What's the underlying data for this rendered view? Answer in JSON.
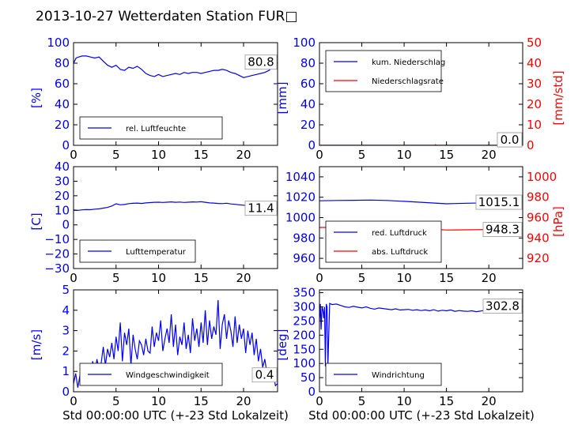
{
  "title": "2013-10-27 Wetterdaten Station FUR□",
  "xlabel": "Std 00:00:00 UTC (+-23 Std Lokalzeit)",
  "colors": {
    "left_axis": "#0000ff",
    "right_axis": "#ff0000",
    "series_blue": "#0000ff",
    "series_red": "#ff0000"
  },
  "chart_data": [
    {
      "id": "humidity",
      "type": "line",
      "ylabel": "[%]",
      "ylim": [
        0,
        100
      ],
      "yticks": [
        0,
        20,
        40,
        60,
        80,
        100
      ],
      "xlim": [
        0,
        24
      ],
      "xticks": [
        0,
        5,
        10,
        15,
        20
      ],
      "legend": {
        "position": "lower-left",
        "entries": [
          "rel. Luftfeuchte"
        ]
      },
      "last_value": "80.8",
      "series": [
        {
          "name": "rel. Luftfeuchte",
          "color": "#0000ff",
          "x": [
            0,
            0.3,
            0.6,
            1,
            1.5,
            2,
            2.5,
            3,
            3.5,
            4,
            4.5,
            5,
            5.5,
            6,
            6.5,
            7,
            7.5,
            8,
            8.5,
            9,
            9.5,
            10,
            10.5,
            11,
            11.5,
            12,
            12.5,
            13,
            13.5,
            14,
            14.5,
            15,
            15.5,
            16,
            16.5,
            17,
            17.5,
            18,
            18.5,
            19,
            19.5,
            20,
            20.5,
            21,
            21.5,
            22,
            22.5,
            23,
            23.5,
            24
          ],
          "y": [
            80,
            85,
            86,
            87,
            87,
            86,
            85,
            86,
            82,
            78,
            76,
            78,
            74,
            73,
            76,
            75,
            77,
            74,
            70,
            68,
            67,
            69,
            67,
            68,
            69,
            70,
            69,
            71,
            70,
            71,
            71,
            70,
            71,
            72,
            73,
            73,
            74,
            73,
            71,
            70,
            68,
            66,
            67,
            68,
            69,
            70,
            71,
            73,
            77,
            81
          ]
        }
      ]
    },
    {
      "id": "precip",
      "type": "line",
      "ylabel": "[mm]",
      "ylabel_right": "[mm/std]",
      "ylim": [
        0,
        100
      ],
      "yticks": [
        0,
        20,
        40,
        60,
        80,
        100
      ],
      "ylim_right": [
        0,
        50
      ],
      "yticks_right": [
        0,
        10,
        20,
        30,
        40,
        50
      ],
      "xlim": [
        0,
        24
      ],
      "xticks": [
        0,
        5,
        10,
        15,
        20
      ],
      "legend": {
        "position": "upper-left",
        "entries": [
          "kum. Niederschlag",
          "Niederschlagsrate"
        ]
      },
      "last_value": "0.0",
      "last_value_right": "0.0",
      "series": [
        {
          "name": "kum. Niederschlag",
          "color": "#0000ff",
          "axis": "left",
          "x": [
            0,
            24
          ],
          "y": [
            0,
            0
          ]
        },
        {
          "name": "Niederschlagsrate",
          "color": "#ff0000",
          "axis": "right",
          "x": [
            0,
            13.6,
            13.7,
            13.8,
            24
          ],
          "y": [
            0,
            0,
            0.3,
            0,
            0
          ]
        }
      ]
    },
    {
      "id": "temperature",
      "type": "line",
      "ylabel": "[C]",
      "ylim": [
        -30,
        40
      ],
      "yticks": [
        -30,
        -20,
        -10,
        0,
        10,
        20,
        30,
        40
      ],
      "xlim": [
        0,
        24
      ],
      "xticks": [
        0,
        5,
        10,
        15,
        20
      ],
      "legend": {
        "position": "lower-left",
        "entries": [
          "Lufttemperatur"
        ]
      },
      "last_value": "11.4",
      "series": [
        {
          "name": "Lufttemperatur",
          "color": "#0000ff",
          "x": [
            0,
            0.5,
            1,
            1.5,
            2,
            2.5,
            3,
            3.5,
            4,
            4.5,
            5,
            5.5,
            6,
            6.5,
            7,
            7.5,
            8,
            8.5,
            9,
            9.5,
            10,
            10.5,
            11,
            11.5,
            12,
            12.5,
            13,
            13.5,
            14,
            14.5,
            15,
            15.5,
            16,
            16.5,
            17,
            17.5,
            18,
            18.5,
            19,
            19.5,
            20,
            20.5,
            21,
            21.5,
            22,
            22.5,
            23,
            23.5,
            24
          ],
          "y": [
            10.2,
            10,
            10.3,
            10.5,
            10.4,
            10.8,
            11,
            11.5,
            12,
            13,
            14.5,
            13.8,
            14,
            14.6,
            14.8,
            15,
            14.7,
            15.1,
            15.3,
            15.5,
            15.6,
            15.4,
            15.6,
            15.8,
            15.5,
            15.7,
            15.4,
            15.6,
            15.8,
            15.7,
            15.9,
            15.5,
            15.1,
            15,
            14.7,
            14.6,
            14.9,
            14.4,
            14.1,
            13.8,
            13.5,
            13.2,
            13,
            12.8,
            12.5,
            12.3,
            12.2,
            12,
            11.4
          ]
        }
      ]
    },
    {
      "id": "pressure",
      "type": "line",
      "ylabel_right": "[hPa]",
      "ylim": [
        950,
        1050
      ],
      "yticks": [
        960,
        980,
        1000,
        1020,
        1040
      ],
      "ylim_right": [
        910,
        1010
      ],
      "yticks_right": [
        920,
        940,
        960,
        980,
        1000
      ],
      "xlim": [
        0,
        24
      ],
      "xticks": [
        0,
        5,
        10,
        15,
        20
      ],
      "legend": {
        "position": "lower-left",
        "entries": [
          "red. Luftdruck",
          "abs. Luftdruck"
        ]
      },
      "last_value": "1015.1",
      "last_value_right": "948.3",
      "series": [
        {
          "name": "red. Luftdruck",
          "color": "#0000ff",
          "axis": "left",
          "x": [
            0,
            2,
            4,
            6,
            8,
            10,
            12,
            14,
            15,
            16,
            18,
            20,
            22,
            24
          ],
          "y": [
            1016.5,
            1016.8,
            1017,
            1017.2,
            1016.8,
            1016,
            1015,
            1014,
            1013.6,
            1013.8,
            1014.2,
            1014.6,
            1015,
            1015.1
          ]
        },
        {
          "name": "abs. Luftdruck",
          "color": "#ff0000",
          "axis": "right",
          "x": [
            0,
            2,
            4,
            6,
            8,
            10,
            12,
            14,
            15,
            16,
            18,
            20,
            22,
            24
          ],
          "y": [
            950.3,
            950.5,
            950.8,
            951.3,
            950.8,
            950.2,
            949.2,
            948.2,
            947.8,
            947.9,
            948.1,
            948.3,
            948.5,
            948.3
          ]
        }
      ]
    },
    {
      "id": "windspeed",
      "type": "line",
      "ylabel": "[m/s]",
      "ylim": [
        0,
        5
      ],
      "yticks": [
        0,
        1,
        2,
        3,
        4,
        5
      ],
      "xlim": [
        0,
        24
      ],
      "xticks": [
        0,
        5,
        10,
        15,
        20
      ],
      "legend": {
        "position": "lower-left",
        "entries": [
          "Windgeschwindigkeit"
        ]
      },
      "last_value": "0.4",
      "series": [
        {
          "name": "Windgeschwindigkeit",
          "color": "#0000ff",
          "x": [
            0,
            0.25,
            0.5,
            0.75,
            1,
            1.25,
            1.5,
            1.75,
            2,
            2.25,
            2.5,
            2.75,
            3,
            3.25,
            3.5,
            3.75,
            4,
            4.25,
            4.5,
            4.75,
            5,
            5.25,
            5.5,
            5.75,
            6,
            6.25,
            6.5,
            6.75,
            7,
            7.25,
            7.5,
            7.75,
            8,
            8.25,
            8.5,
            8.75,
            9,
            9.25,
            9.5,
            9.75,
            10,
            10.25,
            10.5,
            10.75,
            11,
            11.25,
            11.5,
            11.75,
            12,
            12.25,
            12.5,
            12.75,
            13,
            13.25,
            13.5,
            13.75,
            14,
            14.25,
            14.5,
            14.75,
            15,
            15.25,
            15.5,
            15.75,
            16,
            16.25,
            16.5,
            16.75,
            17,
            17.25,
            17.5,
            17.75,
            18,
            18.25,
            18.5,
            18.75,
            19,
            19.25,
            19.5,
            19.75,
            20,
            20.25,
            20.5,
            20.75,
            21,
            21.25,
            21.5,
            21.75,
            22,
            22.25,
            22.5,
            22.75,
            23,
            23.25,
            23.5,
            23.75,
            24
          ],
          "y": [
            0.4,
            0.9,
            0.2,
            0.8,
            0.6,
            1.4,
            0.5,
            1.2,
            0.7,
            1.5,
            0.9,
            1.6,
            1.1,
            1.4,
            2.2,
            1.3,
            2.1,
            1.7,
            2.4,
            1.6,
            2.7,
            2,
            3.4,
            1.5,
            2.9,
            2.3,
            3.1,
            1.3,
            2.8,
            2.1,
            1.6,
            2.5,
            2.3,
            1.8,
            2.6,
            2,
            1.9,
            3.2,
            2.2,
            2.9,
            2.5,
            3.5,
            2,
            2.6,
            3.1,
            2.4,
            3.8,
            2.2,
            3.3,
            1.8,
            2.7,
            2.3,
            3.4,
            2.1,
            2.8,
            1.9,
            3.6,
            2.5,
            3.1,
            2.2,
            3.4,
            2.4,
            4,
            2.3,
            3.5,
            2.6,
            3.2,
            2.8,
            4.5,
            2.1,
            3.3,
            3.8,
            2.6,
            3.5,
            3,
            2.2,
            3.7,
            2.4,
            3.3,
            2.6,
            3.1,
            1.9,
            3,
            2.3,
            2.9,
            1.8,
            2.6,
            1.5,
            2.1,
            1.2,
            1.6,
            0.9,
            1.1,
            0.6,
            0.9,
            0.3,
            0.4
          ]
        }
      ]
    },
    {
      "id": "winddir",
      "type": "line",
      "ylabel": "[deg]",
      "ylim": [
        0,
        360
      ],
      "yticks": [
        0,
        50,
        100,
        150,
        200,
        250,
        300,
        350
      ],
      "xlim": [
        0,
        24
      ],
      "xticks": [
        0,
        5,
        10,
        15,
        20
      ],
      "legend": {
        "position": "lower-left",
        "entries": [
          "Windrichtung"
        ]
      },
      "last_value": "302.8",
      "series": [
        {
          "name": "Windrichtung",
          "color": "#0000ff",
          "x": [
            0,
            0.1,
            0.2,
            0.3,
            0.4,
            0.5,
            0.6,
            0.7,
            0.8,
            0.9,
            1,
            1.2,
            1.5,
            2,
            2.5,
            3,
            3.5,
            4,
            4.5,
            5,
            5.5,
            6,
            6.5,
            7,
            7.5,
            8,
            8.5,
            9,
            9.5,
            10,
            10.5,
            11,
            11.5,
            12,
            12.5,
            13,
            13.5,
            14,
            14.5,
            15,
            15.5,
            16,
            16.5,
            17,
            17.5,
            18,
            18.5,
            19,
            19.5,
            20,
            20.5,
            21,
            21.5,
            22,
            22.5,
            23,
            23.5,
            24
          ],
          "y": [
            250,
            310,
            220,
            300,
            290,
            260,
            300,
            90,
            310,
            300,
            95,
            312,
            308,
            310,
            305,
            300,
            298,
            302,
            299,
            296,
            300,
            295,
            292,
            296,
            294,
            292,
            290,
            293,
            289,
            290,
            291,
            288,
            290,
            287,
            289,
            286,
            290,
            285,
            288,
            286,
            289,
            284,
            287,
            285,
            284,
            286,
            283,
            285,
            288,
            286,
            290,
            292,
            289,
            295,
            298,
            300,
            305,
            302.8
          ]
        }
      ]
    }
  ]
}
